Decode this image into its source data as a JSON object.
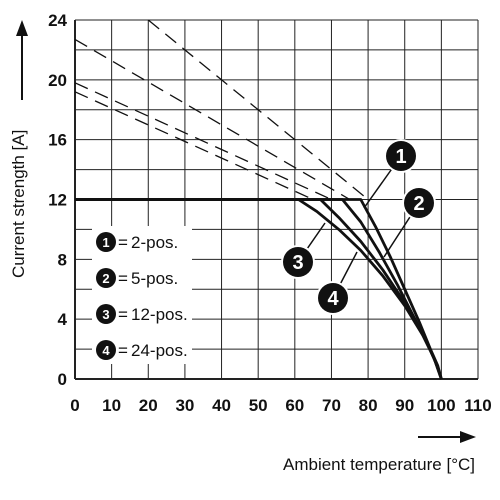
{
  "chart_data": {
    "type": "line",
    "xlabel": "Ambient temperature [°C]",
    "ylabel": "Current strength [A]",
    "xlim": [
      0,
      110
    ],
    "ylim": [
      0,
      24
    ],
    "x_ticks": [
      "0",
      "10",
      "20",
      "30",
      "40",
      "50",
      "60",
      "70",
      "80",
      "90",
      "100",
      "110"
    ],
    "y_ticks": [
      "0",
      "4",
      "8",
      "12",
      "16",
      "20",
      "24"
    ],
    "grid": true,
    "legend_position": "bottom-left",
    "series": [
      {
        "marker": "1",
        "name": "2-pos.",
        "x": [
          0,
          78,
          82,
          86,
          90,
          94,
          97,
          99,
          100
        ],
        "y": [
          12,
          12,
          10.2,
          8.2,
          6.0,
          3.8,
          2.0,
          0.9,
          0
        ]
      },
      {
        "marker": "2",
        "name": "5-pos.",
        "x": [
          0,
          73,
          78,
          83,
          88,
          93,
          97,
          99,
          100
        ],
        "y": [
          12,
          12,
          10.5,
          8.5,
          6.3,
          3.9,
          1.9,
          0.8,
          0
        ]
      },
      {
        "marker": "3",
        "name": "12-pos.",
        "x": [
          0,
          61,
          66,
          72,
          78,
          84,
          90,
          95,
          98,
          100
        ],
        "y": [
          12,
          12,
          11.2,
          10.0,
          8.6,
          6.9,
          4.9,
          2.9,
          1.4,
          0
        ]
      },
      {
        "marker": "4",
        "name": "24-pos.",
        "x": [
          0,
          67,
          72,
          78,
          84,
          90,
          95,
          98,
          100
        ],
        "y": [
          12,
          12,
          10.8,
          9.2,
          7.3,
          5.1,
          3.0,
          1.4,
          0
        ]
      }
    ],
    "dashed_extensions": [
      {
        "x": [
          20,
          80
        ],
        "y": [
          24,
          12
        ]
      },
      {
        "x": [
          0,
          75
        ],
        "y": [
          22.7,
          12
        ]
      },
      {
        "x": [
          0,
          70
        ],
        "y": [
          19.8,
          12
        ]
      },
      {
        "x": [
          0,
          65
        ],
        "y": [
          19.2,
          12
        ]
      }
    ]
  }
}
